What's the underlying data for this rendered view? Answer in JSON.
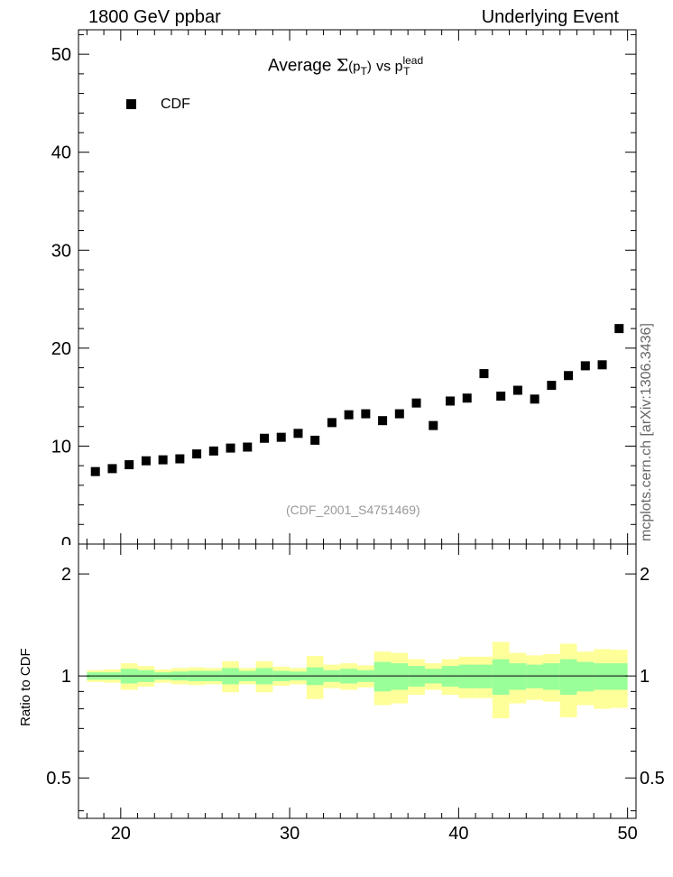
{
  "header": {
    "left": "1800 GeV ppbar",
    "right": "Underlying Event"
  },
  "side_label": "mcplots.cern.ch [arXiv:1306.3436]",
  "watermark": "(CDF_2001_S4751469)",
  "title": {
    "prefix": "Average",
    "symbol": "Σ",
    "arg_open": "(p",
    "arg_sub": "T",
    "arg_close": ")",
    "vs": "vs p",
    "lead_sup": "lead",
    "lead_sub": "T"
  },
  "legend": {
    "label": "CDF",
    "color": "#000000"
  },
  "ratio_label": "Ratio to CDF",
  "colors": {
    "inner_band": "#99ff99",
    "outer_band": "#ffff99",
    "marker": "#000000"
  },
  "chart_data": [
    {
      "type": "scatter",
      "panel": "main",
      "xlim": [
        17.5,
        50.5
      ],
      "ylim": [
        0,
        52.5
      ],
      "yticks": [
        10,
        20,
        30,
        40,
        50
      ],
      "ytick_labels": [
        "10",
        "20",
        "30",
        "40",
        "50",
        "0"
      ],
      "legend_position": "top-left",
      "series": [
        {
          "name": "CDF",
          "x": [
            18.5,
            19.5,
            20.5,
            21.5,
            22.5,
            23.5,
            24.5,
            25.5,
            26.5,
            27.5,
            28.5,
            29.5,
            30.5,
            31.5,
            32.5,
            33.5,
            34.5,
            35.5,
            36.5,
            37.5,
            38.5,
            39.5,
            40.5,
            41.5,
            42.5,
            43.5,
            44.5,
            45.5,
            46.5,
            47.5,
            48.5,
            49.5
          ],
          "y": [
            7.4,
            7.7,
            8.1,
            8.5,
            8.6,
            8.7,
            9.2,
            9.5,
            9.8,
            9.9,
            10.8,
            10.9,
            11.3,
            10.6,
            12.4,
            13.2,
            13.3,
            12.6,
            13.3,
            14.4,
            12.1,
            14.6,
            14.9,
            17.4,
            15.1,
            15.7,
            14.8,
            16.2,
            17.2,
            18.2,
            18.3,
            22.0
          ]
        }
      ]
    },
    {
      "type": "area",
      "panel": "ratio",
      "xlim": [
        17.5,
        50.5
      ],
      "ylim": [
        0.38,
        2.45
      ],
      "log_y": true,
      "yticks": [
        0.5,
        1,
        2
      ],
      "ytick_labels": [
        "0.5",
        "1",
        "2"
      ],
      "xticks": [
        20,
        30,
        40,
        50
      ],
      "xtick_labels": [
        "20",
        "30",
        "40",
        "50"
      ],
      "reference_line": 1,
      "bins_low": [
        18,
        19,
        20,
        21,
        22,
        23,
        24,
        25,
        26,
        27,
        28,
        29,
        30,
        31,
        32,
        33,
        34,
        35,
        36,
        37,
        38,
        39,
        40,
        41,
        42,
        43,
        44,
        45,
        46,
        47,
        48,
        49
      ],
      "bins_high": [
        19,
        20,
        21,
        22,
        23,
        24,
        25,
        26,
        27,
        28,
        29,
        30,
        31,
        32,
        33,
        34,
        35,
        36,
        37,
        38,
        39,
        40,
        41,
        42,
        43,
        44,
        45,
        46,
        47,
        48,
        49,
        50
      ],
      "inner_low": [
        0.975,
        0.975,
        0.95,
        0.96,
        0.975,
        0.97,
        0.965,
        0.965,
        0.945,
        0.965,
        0.945,
        0.965,
        0.97,
        0.94,
        0.96,
        0.95,
        0.96,
        0.9,
        0.91,
        0.93,
        0.95,
        0.93,
        0.92,
        0.92,
        0.88,
        0.91,
        0.92,
        0.91,
        0.88,
        0.9,
        0.91,
        0.91
      ],
      "inner_high": [
        1.025,
        1.025,
        1.05,
        1.04,
        1.025,
        1.03,
        1.035,
        1.035,
        1.055,
        1.035,
        1.055,
        1.035,
        1.03,
        1.06,
        1.04,
        1.05,
        1.04,
        1.1,
        1.09,
        1.07,
        1.05,
        1.07,
        1.08,
        1.08,
        1.12,
        1.09,
        1.08,
        1.09,
        1.12,
        1.1,
        1.09,
        1.09
      ],
      "outer_low": [
        0.96,
        0.955,
        0.91,
        0.93,
        0.955,
        0.945,
        0.94,
        0.945,
        0.895,
        0.945,
        0.895,
        0.935,
        0.945,
        0.855,
        0.92,
        0.91,
        0.925,
        0.82,
        0.83,
        0.88,
        0.91,
        0.88,
        0.86,
        0.86,
        0.75,
        0.83,
        0.85,
        0.84,
        0.755,
        0.82,
        0.8,
        0.805
      ],
      "outer_high": [
        1.04,
        1.045,
        1.09,
        1.07,
        1.045,
        1.055,
        1.06,
        1.055,
        1.105,
        1.055,
        1.105,
        1.065,
        1.055,
        1.145,
        1.08,
        1.09,
        1.075,
        1.18,
        1.17,
        1.12,
        1.09,
        1.12,
        1.14,
        1.14,
        1.26,
        1.17,
        1.15,
        1.16,
        1.245,
        1.18,
        1.2,
        1.195
      ]
    }
  ]
}
